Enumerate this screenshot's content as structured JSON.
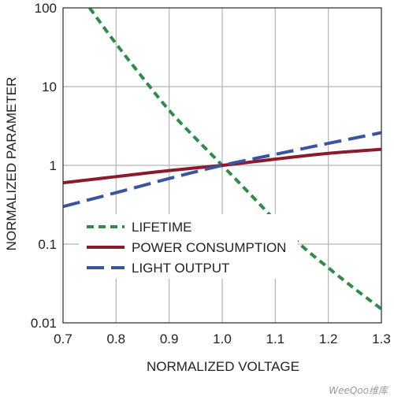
{
  "chart_data": {
    "type": "line",
    "title": "",
    "xlabel": "NORMALIZED VOLTAGE",
    "ylabel": "NORMALIZED PARAMETER",
    "xlim": [
      0.7,
      1.3
    ],
    "ylim": [
      0.01,
      100
    ],
    "yscale": "log",
    "grid": true,
    "legend_position": "lower-left",
    "x_ticks": [
      "0.7",
      "0.8",
      "0.9",
      "1.0",
      "1.1",
      "1.2",
      "1.3"
    ],
    "y_ticks": [
      "0.01",
      "0.1",
      "1",
      "10",
      "100"
    ],
    "series": [
      {
        "name": "LIFETIME",
        "style": "dotted",
        "color": "#2e8b48",
        "x": [
          0.75,
          0.8,
          0.85,
          0.9,
          0.95,
          1.0,
          1.05,
          1.1,
          1.15,
          1.2,
          1.25,
          1.3
        ],
        "y": [
          100,
          35,
          13,
          5,
          2.2,
          1.0,
          0.45,
          0.2,
          0.095,
          0.05,
          0.027,
          0.015
        ]
      },
      {
        "name": "POWER CONSUMPTION",
        "style": "solid",
        "color": "#8b1a2b",
        "x": [
          0.7,
          0.8,
          0.9,
          1.0,
          1.1,
          1.2,
          1.3
        ],
        "y": [
          0.6,
          0.72,
          0.86,
          1.0,
          1.2,
          1.42,
          1.6
        ]
      },
      {
        "name": "LIGHT OUTPUT",
        "style": "dashed",
        "color": "#3a55a0",
        "x": [
          0.7,
          0.8,
          0.9,
          1.0,
          1.1,
          1.2,
          1.3
        ],
        "y": [
          0.3,
          0.45,
          0.68,
          1.0,
          1.38,
          1.9,
          2.6
        ]
      }
    ]
  },
  "watermark_text": "WeeQoo维库"
}
